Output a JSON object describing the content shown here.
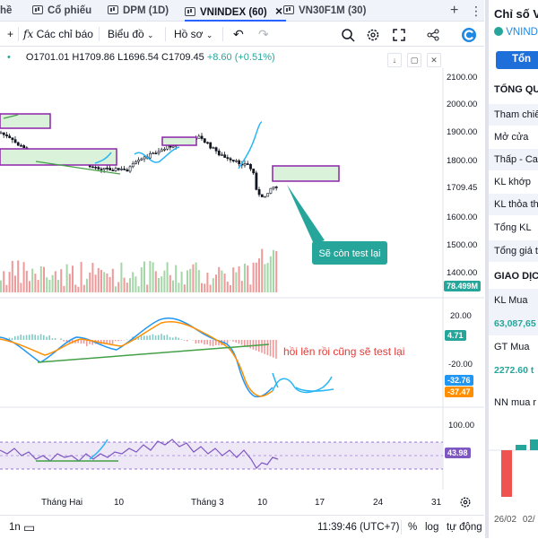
{
  "tabs": [
    {
      "label": "hề"
    },
    {
      "label": "Cổ phiếu"
    },
    {
      "label": "DPM (1D)"
    },
    {
      "label": "VNINDEX (60)"
    },
    {
      "label": "VN30F1M (30)"
    }
  ],
  "tab_close": "×",
  "tab_add": "+",
  "tab_more": "⋮",
  "toolbar": {
    "indicators": "Các chỉ báo",
    "chart_type": "Biểu đồ",
    "profile": "Hồ sơ"
  },
  "ohlc": {
    "dot": "•",
    "o": "O1701.01",
    "h": "H1709.86",
    "l": "L1696.54",
    "c": "C1709.45",
    "chg": "+8.60 (+0.51%)"
  },
  "price_axis": [
    "2100.00",
    "2000.00",
    "1900.00",
    "1800.00",
    "1709.45",
    "1600.00",
    "1500.00",
    "1400.00"
  ],
  "volume_badge": "78.499M",
  "macd_axis": [
    "20.00",
    "-20.00"
  ],
  "macd_badges": [
    "4.71",
    "-32.76",
    "-37.47"
  ],
  "rsi_axis": [
    "100.00",
    "43.98"
  ],
  "annotations": {
    "callout": "Sẽ còn test lại",
    "macd_note": "hồi lên rồi cũng sẽ test lại"
  },
  "time_axis": [
    "Tháng Hai",
    "10",
    "Tháng 3",
    "10",
    "17",
    "24",
    "31"
  ],
  "bottom": {
    "range": "1n",
    "clock": "11:39:46 (UTC+7)",
    "pct": "%",
    "log": "log",
    "auto": "tự động"
  },
  "right_panel": {
    "title": "Chỉ số V",
    "symbol": "VNINDE",
    "button": "Tổn",
    "section1": "TỔNG QU",
    "rows": [
      "Tham chiế",
      "Mở cửa",
      "Thấp - Cao",
      "KL khớp",
      "KL thỏa th",
      "Tổng KL",
      "Tổng giá t"
    ],
    "section2": "GIAO DỊC",
    "kl_mua_label": "KL Mua",
    "kl_mua_value": "63,087,65",
    "gt_mua_label": "GT Mua",
    "gt_mua_value": "2272.60 t",
    "nn_label": "NN mua r",
    "dates": [
      "26/02",
      "02/"
    ]
  },
  "colors": {
    "up": "#26a69a",
    "down": "#ef5350",
    "box_purple": "#8e24aa",
    "box_fill": "#d9f2d9",
    "projection": "#29b6f6",
    "macd_line": "#2196f3",
    "signal_line": "#ff8f00",
    "trend_green": "#43a047",
    "rsi_line": "#7e57c2",
    "callout_bg": "#26a69a"
  }
}
